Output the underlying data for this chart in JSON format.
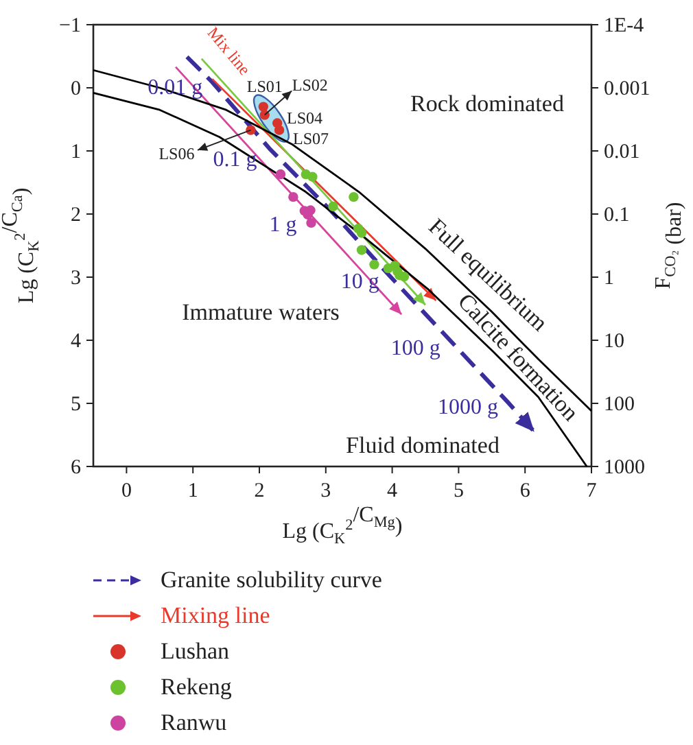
{
  "chart_data": {
    "type": "scatter",
    "xlabel": "Lg (C$_{K}$$^{2}$/C$_{Mg}$)",
    "ylabel": "Lg (C$_{K}$$^{2}$/C$_{Ca}$)",
    "y2label": "F$_{CO₂}$ (bar)",
    "xlim": [
      -0.5,
      7
    ],
    "xticks": [
      0,
      1,
      2,
      3,
      4,
      5,
      6,
      7
    ],
    "ylim": [
      6,
      -1
    ],
    "yticks": [
      {
        "value": -1,
        "label": "−1"
      },
      0,
      1,
      2,
      3,
      4,
      5,
      6
    ],
    "y2lim": [
      1000,
      0.0001
    ],
    "y2ticks": [
      {
        "value": 0.0001,
        "label": "1E-4"
      },
      0.001,
      0.01,
      0.1,
      1,
      10,
      100,
      1000
    ],
    "log": "y2",
    "legend": "bottom",
    "grid": false,
    "series": [
      {
        "name": "Granite solubility curve",
        "type": "line",
        "line_style": "dashed",
        "color": "#3a2d9c",
        "x": [
          0.91,
          1.29,
          2.15,
          3.08,
          3.97,
          4.87,
          5.74,
          6.14
        ],
        "values": [
          -0.49,
          -0.09,
          0.96,
          1.95,
          2.99,
          4.0,
          4.98,
          5.45
        ]
      },
      {
        "name": "Mixing line",
        "type": "line",
        "line_style": "solid",
        "color": "#e8392b",
        "x": [
          1.29,
          4.66
        ],
        "values": [
          -0.14,
          3.37
        ]
      },
      {
        "type": "line",
        "line_style": "solid",
        "color": "#7ac943",
        "x": [
          1.13,
          4.5
        ],
        "values": [
          -0.46,
          3.44
        ]
      },
      {
        "type": "line",
        "line_style": "solid",
        "color": "#d6449e",
        "x": [
          0.74,
          4.14
        ],
        "values": [
          -0.33,
          3.59
        ]
      },
      {
        "type": "line",
        "line_style": "solid",
        "color": "#000000",
        "x": [
          -0.5,
          0.5,
          1.5,
          2.5,
          3.5,
          4.5,
          5.5,
          6.2,
          7
        ],
        "values": [
          -0.28,
          0.0,
          0.35,
          0.9,
          1.65,
          2.55,
          3.55,
          4.3,
          5.12
        ]
      },
      {
        "type": "line",
        "line_style": "solid",
        "color": "#000000",
        "x": [
          -0.5,
          0.5,
          1.4,
          2.7,
          3.5,
          4.14,
          4.55,
          5.53,
          6.2,
          6.93
        ],
        "values": [
          0.08,
          0.35,
          0.78,
          1.65,
          2.3,
          2.85,
          3.2,
          4.19,
          4.9,
          6
        ]
      },
      {
        "name": "Lushan",
        "marker": "circle",
        "color": "#d9342b",
        "x": [
          2.06,
          2.08,
          2.27,
          2.3,
          1.87
        ],
        "values": [
          0.3,
          0.43,
          0.56,
          0.67,
          0.67
        ]
      },
      {
        "name": "Rekeng",
        "marker": "circle",
        "color": "#6cc12e",
        "x": [
          2.7,
          2.8,
          3.42,
          3.11,
          3.49,
          3.54,
          3.54,
          3.73,
          3.94,
          4.04,
          4.08,
          4.11,
          4.18
        ],
        "values": [
          1.37,
          1.41,
          1.73,
          1.88,
          2.23,
          2.3,
          2.57,
          2.8,
          2.86,
          2.82,
          2.91,
          2.97,
          2.99
        ]
      },
      {
        "name": "Ranwu",
        "marker": "circle",
        "color": "#cc44a0",
        "x": [
          2.32,
          2.51,
          2.68,
          2.77,
          2.73,
          2.78
        ],
        "values": [
          1.37,
          1.73,
          1.95,
          1.94,
          2.01,
          2.14
        ]
      }
    ],
    "annotations": [
      "Rock dominated",
      "Immature waters",
      "Fluid dominated",
      "Full equilibrium",
      "Calcite formation",
      "Mix line",
      {
        "text": "0.01 g",
        "x": 1.29,
        "y": -0.09
      },
      {
        "text": "0.1 g",
        "x": 2.15,
        "y": 0.96
      },
      {
        "text": "1 g",
        "x": 3.08,
        "y": 1.95
      },
      {
        "text": "10 g",
        "x": 3.97,
        "y": 2.99
      },
      {
        "text": "100 g",
        "x": 4.87,
        "y": 4.0
      },
      {
        "text": "1000 g",
        "x": 5.74,
        "y": 4.98
      },
      {
        "text": "LS01",
        "x": 2.06,
        "y": 0.3
      },
      {
        "text": "LS02",
        "x": 2.08,
        "y": 0.43
      },
      {
        "text": "LS04",
        "x": 2.27,
        "y": 0.56
      },
      {
        "text": "LS07",
        "x": 2.3,
        "y": 0.67
      },
      {
        "text": "LS06",
        "x": 1.87,
        "y": 0.67
      }
    ]
  }
}
